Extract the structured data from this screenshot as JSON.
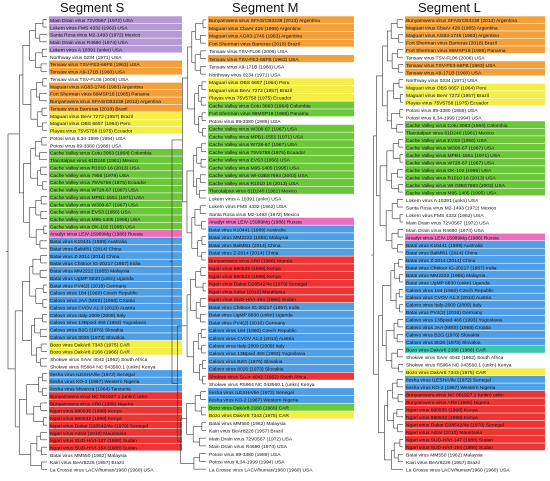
{
  "colors": {
    "purple": "#b59ad6",
    "orange": "#f2a13a",
    "blue": "#4f9fe6",
    "yellow": "#f4ef46",
    "green": "#6cc83a",
    "red": "#ee3535",
    "pink": "#ec6fc0",
    "teal": "#3fc6b0",
    "plain": "#ffffff",
    "line": "#333333"
  },
  "panels": [
    {
      "title": "Segment S",
      "leaves": [
        {
          "label": "Main Drain virus 72V0567 (1972) USA",
          "color": "purple"
        },
        {
          "label": "Lokern virus FMS 4332 (1962) USA",
          "color": "purple"
        },
        {
          "label": "Santa Rosa virus M2-1493 (1972) Mexico",
          "color": "purple"
        },
        {
          "label": "Main Drain virus R4680 (1974) USA",
          "color": "purple"
        },
        {
          "label": "Lokern virus A 10391 (unkn) USA",
          "color": "purple"
        },
        {
          "label": "Northway virus 0234 (1971) USA",
          "color": "plain"
        },
        {
          "label": "Tensaw virus TSV-FE3-66FB (1963) USA",
          "color": "orange"
        },
        {
          "label": "Tensaw virus A9-171B (1960) USA",
          "color": "orange"
        },
        {
          "label": "Tensaw virus TSV-FL06 (2006) USA",
          "color": "plain"
        },
        {
          "label": "Maguari virus AG83-1746 (1983) Argentina",
          "color": "orange"
        },
        {
          "label": "Fort Sherman virus 86MSP18 (1985) Panama",
          "color": "orange"
        },
        {
          "label": "Bunyamwera virus SFASrCB3238 (2013) Argentina",
          "color": "orange"
        },
        {
          "label": "Tensaw virus Barreras (2018) Brazil",
          "color": "orange"
        },
        {
          "label": "Maguari virus BeAr 7272 (1957) Brazil",
          "color": "yellow"
        },
        {
          "label": "Maguari virus OBS 6657 (1964) Peru",
          "color": "yellow"
        },
        {
          "label": "Playas virus 75V5758 (1975) Ecuador",
          "color": "yellow"
        },
        {
          "label": "Potosi virus IL34-1999 (1994) USA",
          "color": "plain"
        },
        {
          "label": "Potosi virus 89-3380 (1989) USA",
          "color": "plain"
        },
        {
          "label": "Cache Valley virus Cotu 3063 (1964) Colombia",
          "color": "green"
        },
        {
          "label": "Tlacotalpan virus 61D240 (1961) Mexico",
          "color": "green"
        },
        {
          "label": "Cache Valley virus R1010 16 (2013) USA",
          "color": "green"
        },
        {
          "label": "Cache Valley virus 7956 (1979) USA",
          "color": "green"
        },
        {
          "label": "Cache Valley virus 75V5758 (1975) Ecuador",
          "color": "green"
        },
        {
          "label": "Cache Valley virus W728-67 (1967) USA",
          "color": "green"
        },
        {
          "label": "Cache Valley virus MPB1-1551 (1971) USA",
          "color": "green"
        },
        {
          "label": "Cache Valley virus W308-67 (1967) USA",
          "color": "green"
        },
        {
          "label": "Cache Valley virus EVS3 (1956) USA",
          "color": "green"
        },
        {
          "label": "Cache Valley virus M95-1405 (1995) USA",
          "color": "green"
        },
        {
          "label": "Cache Valley virus OK-102 (1995) USA",
          "color": "green"
        },
        {
          "label": "Anadyr virus LEIV-15989Mg (1986) Russia",
          "color": "pink"
        },
        {
          "label": "Batai virus K10441 (1989) Australia",
          "color": "blue"
        },
        {
          "label": "Batai virus BalMl61 (2014) China",
          "color": "blue"
        },
        {
          "label": "Batai virus Z-2014 (2014) China",
          "color": "blue"
        },
        {
          "label": "Batai virus Chittoor IG-20217 (1957) India",
          "color": "blue"
        },
        {
          "label": "Batai virus MM2222 (1955) Malaysia",
          "color": "blue"
        },
        {
          "label": "Batai virus UgMP 6830 (unkn) Uganda",
          "color": "blue"
        },
        {
          "label": "Batai virus PV4(2) (2016) Germany",
          "color": "blue"
        },
        {
          "label": "Calovo virus 184 (1960) Czech Republic",
          "color": "blue"
        },
        {
          "label": "Calovo virus JAA (MSS) (1968) Croatia",
          "color": "blue"
        },
        {
          "label": "Calovo virus CVOV A1.3 (2013) Austria",
          "color": "blue"
        },
        {
          "label": "Calovo virus Italy-2009 (2009) Italy",
          "color": "blue"
        },
        {
          "label": "Calovo virus 13Bpoid 466 (1993) Yugoslavia",
          "color": "blue"
        },
        {
          "label": "Calovo virus B2G (1976) Slovakia",
          "color": "blue"
        },
        {
          "label": "Calovo virus 8026 (1973) Slovakia",
          "color": "blue"
        },
        {
          "label": "Bozo virus DakAr8 7343 (1975) CAR",
          "color": "yellow"
        },
        {
          "label": "Bozo virus DakAr8 2166 (1966) CAR",
          "color": "yellow"
        },
        {
          "label": "Shokwe virus SAAr 4042 (1962) South Africa",
          "color": "plain"
        },
        {
          "label": "Shokwe virus R5964 NC 043560.1 (unkn) Kenya",
          "color": "plain"
        },
        {
          "label": "Ilesha virus ILESHA/Ile (1972) Senegal",
          "color": "blue"
        },
        {
          "label": "Ilesha virus KO-2 (1967) Western Nigeria",
          "color": "blue"
        },
        {
          "label": "Ilesha virus Mwanza (1964) Tanzania",
          "color": "blue"
        },
        {
          "label": "Bunyamwera virus NC 001927.1 (unkn) unkn",
          "color": "red"
        },
        {
          "label": "Bunyamwera virus AR8 (1986) Nigeria",
          "color": "red"
        },
        {
          "label": "Ngari virus 880535 (1998) Kenya",
          "color": "red"
        },
        {
          "label": "Ngari virus 880532 (1998) Kenya",
          "color": "red"
        },
        {
          "label": "Ngari virus Dakar D28542/4e (1979) Senegal",
          "color": "red"
        },
        {
          "label": "Ngari virus Adrar (2010) Mauritania",
          "color": "red"
        },
        {
          "label": "Ngari virus SUD-H/VI-147 (1988) Sudan",
          "color": "red"
        },
        {
          "label": "Ngari virus SUD-H/VI-154 (1988) Sudan",
          "color": "red"
        },
        {
          "label": "Batai virus MM550 (1962) Malaysia",
          "color": "plain"
        },
        {
          "label": "Kairi virus BeAr8226 (1957) Brazil",
          "color": "plain"
        },
        {
          "label": "La Crosse virus LACV/human/1960 (1960) USA",
          "color": "plain"
        }
      ]
    },
    {
      "title": "Segment  M",
      "leaves": [
        {
          "label": "Bunyamwera virus SFASrCB3238 (2013) Argentina",
          "color": "orange"
        },
        {
          "label": "Maguari virus CbaAr 426 (1965) Argentina",
          "color": "orange"
        },
        {
          "label": "Maguari virus AG83-1746 (1983) Argentina",
          "color": "orange"
        },
        {
          "label": "Fort Sherman virus Barreras (2018) Brazil",
          "color": "orange"
        },
        {
          "label": "Tensaw virus TSV-FL06 (2006) USA",
          "color": "plain"
        },
        {
          "label": "Tensaw virus TSV-FE3-66FB (1963) USA",
          "color": "orange"
        },
        {
          "label": "Tensaw virus A9-171B (1960) USA",
          "color": "plain"
        },
        {
          "label": "Northway virus 0234 (1971) USA",
          "color": "plain"
        },
        {
          "label": "Maguari virus OBS 6657 (1964) Peru",
          "color": "yellow"
        },
        {
          "label": "Maguari virus BeAr 7272 (1957) Brazil",
          "color": "yellow"
        },
        {
          "label": "Playas virus 75V5758 (1975) Ecuador",
          "color": "yellow"
        },
        {
          "label": "Cache Valley virus Cotu 3063 (1964) Colombia",
          "color": "green"
        },
        {
          "label": "Fort Sherman virus 86MSP18 (1985) Panama",
          "color": "green"
        },
        {
          "label": "Potosi virus 89-3380 (1989) USA",
          "color": "plain"
        },
        {
          "label": "Cache Valley virus W308-67 (1967) USA",
          "color": "green"
        },
        {
          "label": "Cache Valley virus MPB1-1551 (1971) USA",
          "color": "green"
        },
        {
          "label": "Cache Valley virus W728-67 (1967) USA",
          "color": "green"
        },
        {
          "label": "Cache Valley virus 75V5758 (1975) Ecuador",
          "color": "green"
        },
        {
          "label": "Cache Valley virus EVS3 (1956) USA",
          "color": "green"
        },
        {
          "label": "Cache Valley virus M95-1405 (1995) USA",
          "color": "green"
        },
        {
          "label": "Cache Valley virus WI-03BS7693 (2003) USA",
          "color": "green"
        },
        {
          "label": "Cache Valley virus R1010 16 (2013) USA",
          "color": "green"
        },
        {
          "label": "Tlacotalpan virus 61D240 (1961) Mexico",
          "color": "green"
        },
        {
          "label": "Lokern virus A 10391 (unkn) USA",
          "color": "plain"
        },
        {
          "label": "Lokern virus FMS 4332 (1962) USA",
          "color": "plain"
        },
        {
          "label": "Santa Rosa virus M2-1493 (1972) Mexico",
          "color": "plain"
        },
        {
          "label": "Anadyr virus LEIV-15989Mg (1986) Russia",
          "color": "pink"
        },
        {
          "label": "Batai virus K10441 (1989) Australia",
          "color": "blue"
        },
        {
          "label": "Batai virus MM2222 (1955) Malaysia",
          "color": "blue"
        },
        {
          "label": "Batai virus BalMl61 (2014) China",
          "color": "blue"
        },
        {
          "label": "Batai virus Z-2014 (2014) China",
          "color": "blue"
        },
        {
          "label": "Bunyamwera virus AR8 (1986) Nigeria",
          "color": "red"
        },
        {
          "label": "Ngari virus 880535 (1998) Kenya",
          "color": "red"
        },
        {
          "label": "Ngari virus 880532 (1998) Kenya",
          "color": "red"
        },
        {
          "label": "Ngari virus Dakar D28542/4e (1979) Senegal",
          "color": "red"
        },
        {
          "label": "Ngari virus Adrar (2010) Mauritania",
          "color": "red"
        },
        {
          "label": "Ngari virus SUD-H/VI-154 (1988) Sudan",
          "color": "red"
        },
        {
          "label": "Batai virus Chittoor IG-20217 (1957) India",
          "color": "blue"
        },
        {
          "label": "Batai virus UgMP 6830 (unkn) Uganda",
          "color": "blue"
        },
        {
          "label": "Batai virus PV4(2) (2016) Germany",
          "color": "blue"
        },
        {
          "label": "Calovo virus 184 (1960) Czech Republic",
          "color": "blue"
        },
        {
          "label": "Calovo virus CVOV A1.3 (2013) Austria",
          "color": "blue"
        },
        {
          "label": "Calovo virus Italy-2009 (2009) Italy",
          "color": "blue"
        },
        {
          "label": "Calovo virus 13Bpoid 466 (1993) Yugoslavia",
          "color": "blue"
        },
        {
          "label": "Calovo virus B2G (1976) Slovakia",
          "color": "blue"
        },
        {
          "label": "Calovo virus 8026 (1973) Slovakia",
          "color": "blue"
        },
        {
          "label": "Shokwe virus SAAr 4042 (1962) South Africa",
          "color": "red"
        },
        {
          "label": "Shokwe virus R5964 NC 043560.1 (unkn) Kenya",
          "color": "plain"
        },
        {
          "label": "Ilesha virus ILESHA/Ile (1972) Senegal",
          "color": "blue"
        },
        {
          "label": "Ilesha virus KO-2 (1967) Western Nigeria",
          "color": "blue"
        },
        {
          "label": "Bozo virus DakAr8 2166 (1966) CAR",
          "color": "green"
        },
        {
          "label": "Bozo virus DakAr8 7343 (1975) CAR",
          "color": "yellow"
        },
        {
          "label": "Batai virus MM550 (1962) Malaysia",
          "color": "plain"
        },
        {
          "label": "Kairi virus BeAr8226 (1957) Brazil",
          "color": "plain"
        },
        {
          "label": "Main Drain virus 72V0567 (1972) USA",
          "color": "plain"
        },
        {
          "label": "Main Drain virus R4680 (1974) USA",
          "color": "plain"
        },
        {
          "label": "Potosi virus 89-3380 (1989) USA",
          "color": "plain"
        },
        {
          "label": "Potosi virus IL34-1999 (1994) USA",
          "color": "plain"
        },
        {
          "label": "La Crosse virus LACV/human/1960 (1960) USA",
          "color": "plain"
        }
      ]
    },
    {
      "title": "Segment  L",
      "leaves": [
        {
          "label": "Bunyamwera virus SFASrCB3238 (2013) Argentina",
          "color": "orange"
        },
        {
          "label": "Maguari virus CbaAr 426 (1965) Argentina",
          "color": "orange"
        },
        {
          "label": "Maguari virus AG83-1746 (1983) Argentina",
          "color": "orange"
        },
        {
          "label": "Fort Sherman virus Barreras (2018) Brazil",
          "color": "orange"
        },
        {
          "label": "Fort Sherman virus 86MSP18 (1985) Panama",
          "color": "orange"
        },
        {
          "label": "Tensaw virus TSV-FL06 (2006) USA",
          "color": "plain"
        },
        {
          "label": "Tensaw virus TSV-FE3-66FB (1963) USA",
          "color": "orange"
        },
        {
          "label": "Tensaw virus A9-171B (1960) USA",
          "color": "orange"
        },
        {
          "label": "Northway virus 0234 (1971) USA",
          "color": "plain"
        },
        {
          "label": "Maguari virus OBS 6657 (1964) Peru",
          "color": "yellow"
        },
        {
          "label": "Maguari virus BeAr 7272 (1957) Brazil",
          "color": "yellow"
        },
        {
          "label": "Playas virus 75V5758 (1975) Ecuador",
          "color": "yellow"
        },
        {
          "label": "Potosi virus 89-3380 (1989) USA",
          "color": "plain"
        },
        {
          "label": "Potosi virus IL34-1999 (1994) USA",
          "color": "plain"
        },
        {
          "label": "Cache Valley virus Cotu 3063 (1964) Colombia",
          "color": "green"
        },
        {
          "label": "Tlacotalpan virus 61D240 (1961) Mexico",
          "color": "green"
        },
        {
          "label": "Cache Valley virus EVS3 (1956) USA",
          "color": "green"
        },
        {
          "label": "Cache Valley virus W308-67 (1967) USA",
          "color": "green"
        },
        {
          "label": "Cache Valley virus MPB1-1551 (1971) USA",
          "color": "green"
        },
        {
          "label": "Cache Valley virus W728-67 (1967) USA",
          "color": "green"
        },
        {
          "label": "Cache Valley virus OK-102 (1995) USA",
          "color": "green"
        },
        {
          "label": "Cache Valley virus R1010 16 (2013) USA",
          "color": "green"
        },
        {
          "label": "Cache Valley virus WI-03BS7693 (2003) USA",
          "color": "green"
        },
        {
          "label": "Cache Valley virus M95-1405 (1995) USA",
          "color": "green"
        },
        {
          "label": "Lokern virus A 10391 (unkn) USA",
          "color": "plain"
        },
        {
          "label": "Santa Rosa virus M2-1493 (1972) Mexico",
          "color": "plain"
        },
        {
          "label": "Lokern virus FMS 4332 (1962) USA",
          "color": "plain"
        },
        {
          "label": "Main Drain virus 72V0567 (1972) USA",
          "color": "plain"
        },
        {
          "label": "Main Drain virus R4680 (1974) USA",
          "color": "plain"
        },
        {
          "label": "Anadyr virus LEIV-15989Mg (1986) Russia",
          "color": "pink"
        },
        {
          "label": "Batai virus K10441 (1989) Australia",
          "color": "blue"
        },
        {
          "label": "Batai virus BalMl61 (2014) China",
          "color": "blue"
        },
        {
          "label": "Batai virus Z-2014 (2014) China",
          "color": "blue"
        },
        {
          "label": "Batai virus Chittoor IG-20217 (1957) India",
          "color": "blue"
        },
        {
          "label": "Batai virus MM2222 (1955) Malaysia",
          "color": "blue"
        },
        {
          "label": "Batai virus UgMP 6830 (unkn) Uganda",
          "color": "blue"
        },
        {
          "label": "Calovo virus 184 (1960) Czech Republic",
          "color": "blue"
        },
        {
          "label": "Calovo virus CVOV A1.3 (2013) Austria",
          "color": "blue"
        },
        {
          "label": "Calovo virus Italy-2009 (2009) Italy",
          "color": "blue"
        },
        {
          "label": "Batai virus PV4(2) (2016) Germany",
          "color": "blue"
        },
        {
          "label": "Calovo virus 13Bpoid 466 (1993) Yugoslavia",
          "color": "blue"
        },
        {
          "label": "Calovo virus JAA (MSS) (1968) Croatia",
          "color": "blue"
        },
        {
          "label": "Calovo virus B2G (1976) Slovakia",
          "color": "blue"
        },
        {
          "label": "Calovo virus 8026 (1973) Slovakia",
          "color": "blue"
        },
        {
          "label": "Bozo virus DakAr8 2166 (1966) CAR",
          "color": "teal"
        },
        {
          "label": "Shokwe virus SAAr 4042 (1962) South Africa",
          "color": "plain"
        },
        {
          "label": "Shokwe virus R5964 NC 043560.1 (unkn) Kenya",
          "color": "plain"
        },
        {
          "label": "Bozo virus DakAr8 7343 (1975) CAR",
          "color": "yellow"
        },
        {
          "label": "Ilesha virus ILESHA/Ile (1972) Senegal",
          "color": "blue"
        },
        {
          "label": "Ilesha virus KO-2 (1967) Western Nigeria",
          "color": "blue"
        },
        {
          "label": "Bunyamwera virus NC 001927.1 (unkn) unkn",
          "color": "red"
        },
        {
          "label": "Bunyamwera virus AR8 (1986) Nigeria",
          "color": "red"
        },
        {
          "label": "Ngari virus 880535 (1998) Kenya",
          "color": "red"
        },
        {
          "label": "Ngari virus 880532 (1998) Kenya",
          "color": "red"
        },
        {
          "label": "Ngari virus Dakar D28542/4e (1979) Senegal",
          "color": "red"
        },
        {
          "label": "Ngari virus Adrar (2010) Mauritania",
          "color": "red"
        },
        {
          "label": "Ngari virus SUD-H/VI-147 (1988) Sudan",
          "color": "red"
        },
        {
          "label": "Ngari virus SUD-H/VI-154 (1988) Sudan",
          "color": "red"
        },
        {
          "label": "Batai virus MM550 (1962) Malaysia",
          "color": "plain"
        },
        {
          "label": "Kairi virus BeAr8226 (1957) Brazil",
          "color": "plain"
        },
        {
          "label": "La Crosse virus LACV/human/1960 (1960) USA",
          "color": "plain"
        }
      ]
    }
  ]
}
